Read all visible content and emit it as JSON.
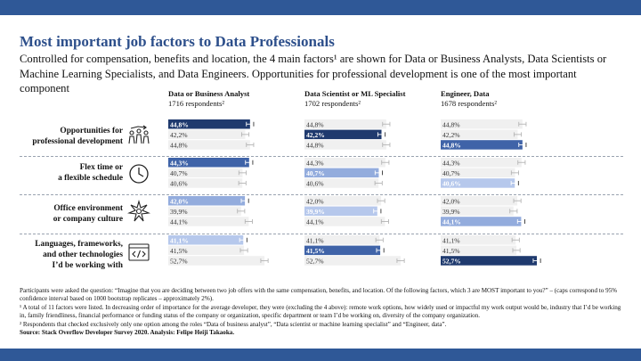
{
  "title": "Most important job factors to Data Professionals",
  "subtitle": "Controlled for compensation, benefits and location, the 4 main factors¹ are shown for Data or Business Analysts, Data Scientists or Machine Learning Specialists, and Data Engineers. Opportunities for professional development is one of the most important component",
  "colors": {
    "banner": "#2f5897",
    "title": "#2d4f8b",
    "rank1": "#1f3a6e",
    "rank2": "#3f63a8",
    "rank3": "#93acdd",
    "rank4": "#b6c8ec",
    "neutral": "#f0f0f0"
  },
  "icons": [
    "people-growth-icon",
    "clock-icon",
    "culture-splash-icon",
    "code-window-icon"
  ],
  "columns": [
    {
      "name": "Data or Business Analyst",
      "respondents": "1716 respondents²"
    },
    {
      "name": "Data Scientist or ML Specialist",
      "respondents": "1702 respondents²"
    },
    {
      "name": "Engineer, Data",
      "respondents": "1678 respondents²"
    }
  ],
  "rows": [
    {
      "label": [
        "Opportunities for",
        "professional development"
      ]
    },
    {
      "label": [
        "Flex time or",
        "a flexible schedule"
      ]
    },
    {
      "label": [
        "Office environment",
        "or company culture"
      ]
    },
    {
      "label": [
        "Languages, frameworks,",
        "and other technologies",
        "I’d be working with"
      ]
    }
  ],
  "chart_data": {
    "type": "bar",
    "xlim": [
      0,
      60
    ],
    "columns": [
      "Data or Business Analyst",
      "Data Scientist or ML Specialist",
      "Engineer, Data"
    ],
    "factors": [
      "Opportunities for professional development",
      "Flex time or a flexible schedule",
      "Office environment or company culture",
      "Languages, frameworks, and other technologies I’d be working with"
    ],
    "cells": [
      [
        {
          "values": [
            44.8,
            42.2,
            44.8
          ],
          "labels": [
            "44,8%",
            "42,2%",
            "44,8%"
          ],
          "highlight": 0,
          "rank": 1
        },
        {
          "values": [
            44.8,
            42.2,
            44.8
          ],
          "labels": [
            "44,8%",
            "42,2%",
            "44,8%"
          ],
          "highlight": 1,
          "rank": 1
        },
        {
          "values": [
            44.8,
            42.2,
            44.8
          ],
          "labels": [
            "44,8%",
            "42,2%",
            "44,8%"
          ],
          "highlight": 2,
          "rank": 2
        }
      ],
      [
        {
          "values": [
            44.3,
            40.7,
            40.6
          ],
          "labels": [
            "44,3%",
            "40,7%",
            "40,6%"
          ],
          "highlight": 0,
          "rank": 2
        },
        {
          "values": [
            44.3,
            40.7,
            40.6
          ],
          "labels": [
            "44,3%",
            "40,7%",
            "40,6%"
          ],
          "highlight": 1,
          "rank": 3
        },
        {
          "values": [
            44.3,
            40.7,
            40.6
          ],
          "labels": [
            "44,3%",
            "40,7%",
            "40,6%"
          ],
          "highlight": 2,
          "rank": 4
        }
      ],
      [
        {
          "values": [
            42.0,
            39.9,
            44.1
          ],
          "labels": [
            "42,0%",
            "39,9%",
            "44,1%"
          ],
          "highlight": 0,
          "rank": 3
        },
        {
          "values": [
            42.0,
            39.9,
            44.1
          ],
          "labels": [
            "42,0%",
            "39,9%",
            "44,1%"
          ],
          "highlight": 1,
          "rank": 4
        },
        {
          "values": [
            42.0,
            39.9,
            44.1
          ],
          "labels": [
            "42,0%",
            "39,9%",
            "44,1%"
          ],
          "highlight": 2,
          "rank": 3
        }
      ],
      [
        {
          "values": [
            41.1,
            41.5,
            52.7
          ],
          "labels": [
            "41,1%",
            "41,5%",
            "52,7%"
          ],
          "highlight": 0,
          "rank": 4
        },
        {
          "values": [
            41.1,
            41.5,
            52.7
          ],
          "labels": [
            "41,1%",
            "41,5%",
            "52,7%"
          ],
          "highlight": 1,
          "rank": 2
        },
        {
          "values": [
            41.1,
            41.5,
            52.7
          ],
          "labels": [
            "41,1%",
            "41,5%",
            "52,7%"
          ],
          "highlight": 2,
          "rank": 1
        }
      ]
    ],
    "error_bar": 2
  },
  "notes": {
    "question": "Participants were asked the question: “Imagine that you are deciding between two job offers with the same compensation, benefits, and location. Of the following factors, which 3 are MOST important to you?” – (caps correspond to 95% confidence interval based on 1000 bootstrap replicates – approximately 2%).",
    "footnote1": "¹ A total of 11 factors were listed. In decreasing order of importance for the average developer, they were (excluding the 4 above): remote work options, how widely used or impactful my work output would be, industry that I’d be working in, family friendliness, financial performance or funding status of the company or organization, specific department or team I’d be working on, diversity of the company organization.",
    "footnote2": "² Respondents that checked exclusively only one option among the roles “Data of business analyst”, “Data scientist or machine learning specialist” and “Engineer, data”.",
    "source": "Source: Stack Overflow Developer Survey 2020. Analysis: Felipe Heiji Takaoka."
  }
}
